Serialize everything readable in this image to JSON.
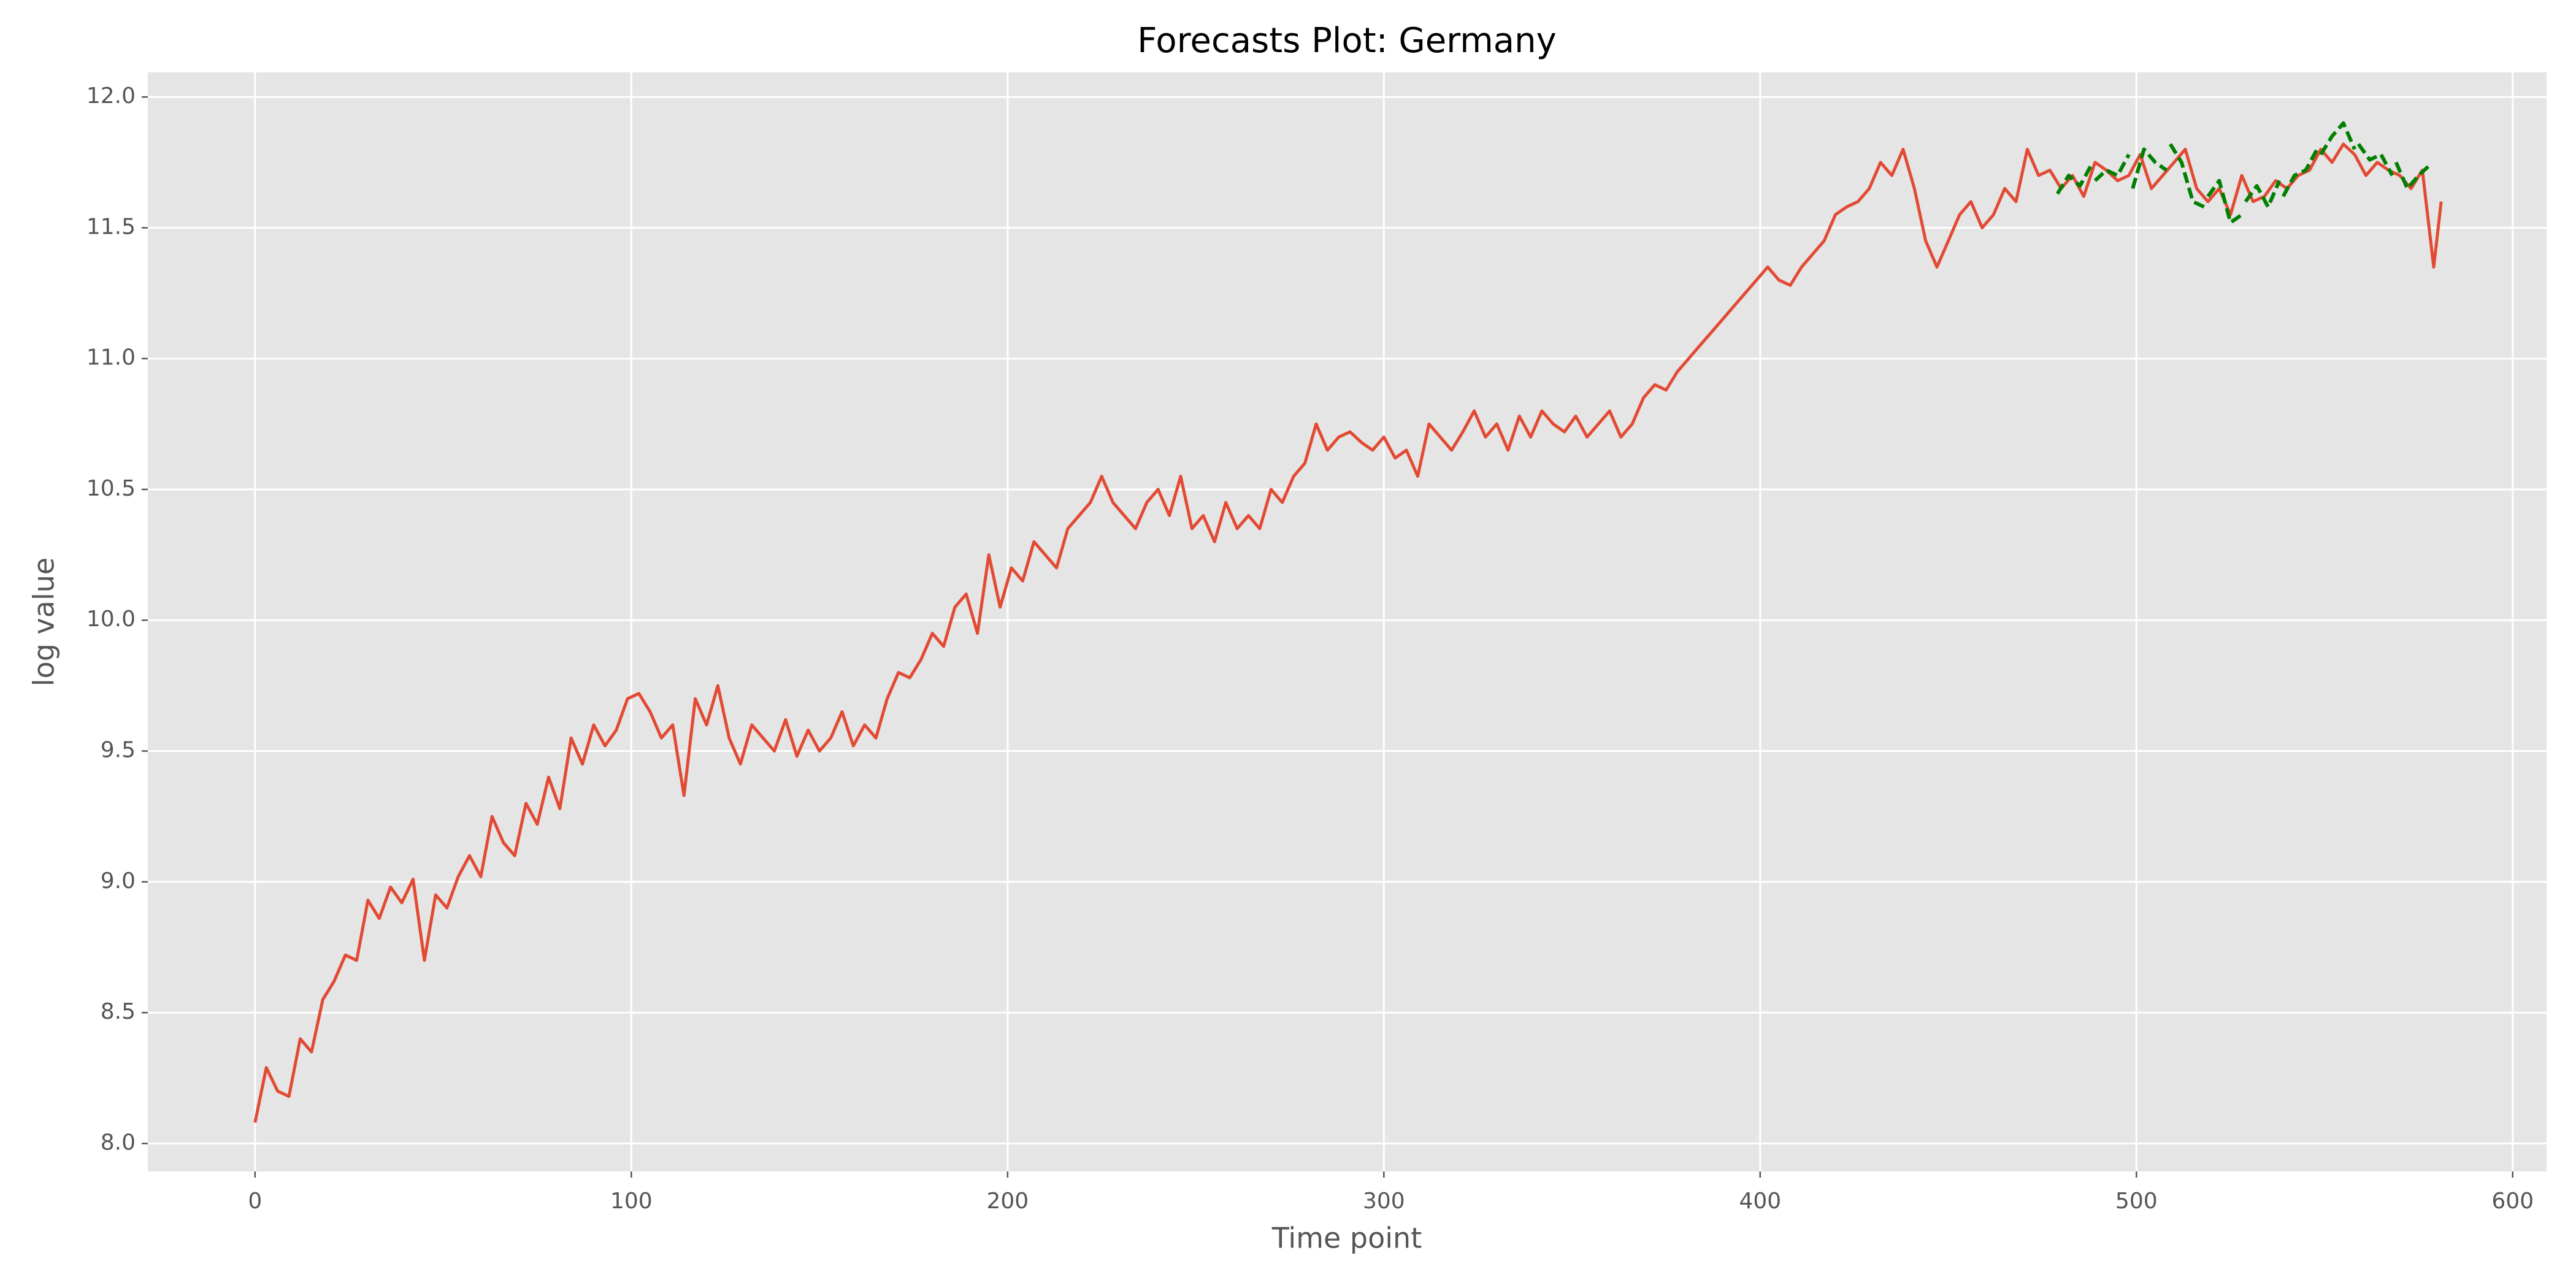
{
  "chart_data": {
    "type": "line",
    "title": "Forecasts Plot: Germany",
    "xlabel": "Time point",
    "ylabel": "log value",
    "xlim": [
      -28.5,
      609
    ],
    "ylim": [
      7.893,
      12.094
    ],
    "xticks": [
      0,
      100,
      200,
      300,
      400,
      500,
      600
    ],
    "yticks": [
      {
        "value": 8,
        "label": "8.0"
      },
      8.5,
      {
        "value": 9,
        "label": "9.0"
      },
      9.5,
      {
        "value": 10,
        "label": "10.0"
      },
      10.5,
      {
        "value": 11,
        "label": "11.0"
      },
      11.5,
      {
        "value": 12,
        "label": "12.0"
      }
    ],
    "grid": true,
    "background": "#e5e5e5",
    "series": [
      {
        "color": "#e24a33",
        "linestyle": "solid",
        "x": [
          0,
          3,
          6,
          9,
          12,
          15,
          18,
          21,
          24,
          27,
          30,
          33,
          36,
          39,
          42,
          45,
          48,
          51,
          54,
          57,
          60,
          63,
          66,
          69,
          72,
          75,
          78,
          81,
          84,
          87,
          90,
          93,
          96,
          99,
          102,
          105,
          108,
          111,
          114,
          117,
          120,
          123,
          126,
          129,
          132,
          135,
          138,
          141,
          144,
          147,
          150,
          153,
          156,
          159,
          162,
          165,
          168,
          171,
          174,
          177,
          180,
          183,
          186,
          189,
          192,
          195,
          198,
          201,
          204,
          207,
          210,
          213,
          216,
          219,
          222,
          225,
          228,
          231,
          234,
          237,
          240,
          243,
          246,
          249,
          252,
          255,
          258,
          261,
          264,
          267,
          270,
          273,
          276,
          279,
          282,
          285,
          288,
          291,
          294,
          297,
          300,
          303,
          306,
          309,
          312,
          315,
          318,
          321,
          324,
          327,
          330,
          333,
          336,
          339,
          342,
          345,
          348,
          351,
          354,
          357,
          360,
          363,
          366,
          369,
          372,
          375,
          378,
          381,
          384,
          387,
          390,
          393,
          396,
          399,
          402,
          405,
          408,
          411,
          414,
          417,
          420,
          423,
          426,
          429,
          432,
          435,
          438,
          441,
          444,
          447,
          450,
          453,
          456,
          459,
          462,
          465,
          468,
          471,
          474,
          477,
          480,
          483,
          486,
          489,
          492,
          495,
          498,
          501,
          504,
          507,
          510,
          513,
          516,
          519,
          522,
          525,
          528,
          531,
          534,
          537,
          540,
          543,
          546,
          549,
          552,
          555,
          558,
          561,
          564,
          567,
          570,
          573,
          576,
          579,
          581
        ],
        "values": [
          8.08,
          8.29,
          8.2,
          8.18,
          8.4,
          8.35,
          8.55,
          8.62,
          8.72,
          8.7,
          8.93,
          8.86,
          8.98,
          8.92,
          9.01,
          8.7,
          8.95,
          8.9,
          9.02,
          9.1,
          9.02,
          9.25,
          9.15,
          9.1,
          9.3,
          9.22,
          9.4,
          9.28,
          9.55,
          9.45,
          9.6,
          9.52,
          9.58,
          9.7,
          9.72,
          9.65,
          9.55,
          9.6,
          9.33,
          9.7,
          9.6,
          9.75,
          9.55,
          9.45,
          9.6,
          9.55,
          9.5,
          9.62,
          9.48,
          9.58,
          9.5,
          9.55,
          9.65,
          9.52,
          9.6,
          9.55,
          9.7,
          9.8,
          9.78,
          9.85,
          9.95,
          9.9,
          10.05,
          10.1,
          9.95,
          10.25,
          10.05,
          10.2,
          10.15,
          10.3,
          10.25,
          10.2,
          10.35,
          10.4,
          10.45,
          10.55,
          10.45,
          10.4,
          10.35,
          10.45,
          10.5,
          10.4,
          10.55,
          10.35,
          10.4,
          10.3,
          10.45,
          10.35,
          10.4,
          10.35,
          10.5,
          10.45,
          10.55,
          10.6,
          10.75,
          10.65,
          10.7,
          10.72,
          10.68,
          10.65,
          10.7,
          10.62,
          10.65,
          10.55,
          10.75,
          10.7,
          10.65,
          10.72,
          10.8,
          10.7,
          10.75,
          10.65,
          10.78,
          10.7,
          10.8,
          10.75,
          10.72,
          10.78,
          10.7,
          10.75,
          10.8,
          10.7,
          10.75,
          10.85,
          10.9,
          10.88,
          10.95,
          11.0,
          11.05,
          11.1,
          11.15,
          11.2,
          11.25,
          11.3,
          11.35,
          11.3,
          11.28,
          11.35,
          11.4,
          11.45,
          11.55,
          11.58,
          11.6,
          11.65,
          11.75,
          11.7,
          11.8,
          11.65,
          11.45,
          11.35,
          11.45,
          11.55,
          11.6,
          11.5,
          11.55,
          11.65,
          11.6,
          11.8,
          11.7,
          11.72,
          11.65,
          11.7,
          11.62,
          11.75,
          11.72,
          11.68,
          11.7,
          11.78,
          11.65,
          11.7,
          11.75,
          11.8,
          11.65,
          11.6,
          11.65,
          11.55,
          11.7,
          11.6,
          11.62,
          11.68,
          11.65,
          11.7,
          11.72,
          11.8,
          11.75,
          11.82,
          11.78,
          11.7,
          11.75,
          11.72,
          11.7,
          11.65,
          11.72,
          11.35,
          11.6
        ]
      },
      {
        "color": "#008000",
        "linestyle": "dashed",
        "x": [
          479,
          482,
          485,
          488,
          489,
          489,
          492,
          495,
          498,
          499,
          499,
          502,
          505,
          508,
          509,
          509,
          512,
          515,
          518,
          519,
          519,
          522,
          525,
          528,
          529,
          529,
          532,
          535,
          538,
          539,
          539,
          542,
          545,
          548,
          549,
          549,
          552,
          555,
          558,
          559,
          559,
          562,
          565,
          568,
          569,
          569,
          572,
          575,
          578
        ],
        "values": [
          11.63,
          11.7,
          11.66,
          11.74,
          null,
          11.68,
          11.72,
          11.7,
          11.78,
          null,
          11.65,
          11.8,
          11.75,
          11.72,
          null,
          11.82,
          11.75,
          11.6,
          11.58,
          null,
          11.62,
          11.68,
          11.52,
          11.55,
          null,
          11.6,
          11.66,
          11.58,
          11.68,
          null,
          11.62,
          11.7,
          11.72,
          11.8,
          null,
          11.78,
          11.85,
          11.9,
          11.8,
          null,
          11.82,
          11.76,
          11.78,
          11.7,
          null,
          11.75,
          11.65,
          11.7,
          11.74
        ]
      }
    ]
  }
}
